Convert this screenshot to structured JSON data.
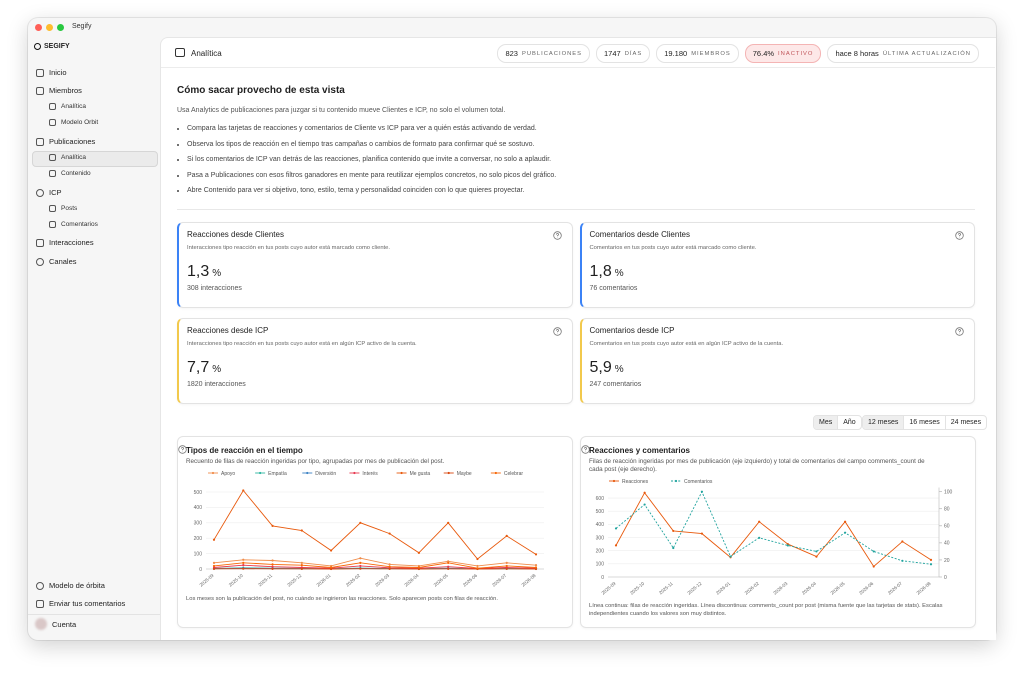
{
  "window_title": "Segify",
  "sidebar": {
    "brand": "SEGIFY",
    "nav": [
      "Inicio",
      "Miembros",
      "Analítica",
      "Modelo Orbit",
      "Publicaciones",
      "Analítica",
      "Contenido",
      "ICP",
      "Posts",
      "Comentarios",
      "Interacciones",
      "Canales"
    ],
    "footer": [
      "Modelo de órbita",
      "Enviar tus comentarios",
      "Cuenta"
    ]
  },
  "topbar": {
    "title": "Analítica",
    "stats": [
      {
        "value": "823",
        "label": "PUBLICACIONES"
      },
      {
        "value": "1747",
        "label": "DÍAS"
      },
      {
        "value": "19.180",
        "label": "MIEMBROS"
      },
      {
        "value": "76.4%",
        "label": "INACTIVO"
      },
      {
        "value": "hace 8 horas",
        "label": "ÚLTIMA ACTUALIZACIÓN"
      }
    ]
  },
  "guide": {
    "title": "Cómo sacar provecho de esta vista",
    "intro": "Usa Analytics de publicaciones para juzgar si tu contenido mueve Clientes e ICP, no solo el volumen total.",
    "bullets": [
      "Compara las tarjetas de reacciones y comentarios de Cliente vs ICP para ver a quién estás activando de verdad.",
      "Observa los tipos de reacción en el tiempo tras campañas o cambios de formato para confirmar qué se sostuvo.",
      "Si los comentarios de ICP van detrás de las reacciones, planifica contenido que invite a conversar, no solo a aplaudir.",
      "Pasa a Publicaciones con esos filtros ganadores en mente para reutilizar ejemplos concretos, no solo picos del gráfico.",
      "Abre Contenido para ver si objetivo, tono, estilo, tema y personalidad coinciden con lo que quieres proyectar."
    ]
  },
  "cards": [
    {
      "title": "Reacciones desde Clientes",
      "description": "Interacciones tipo reacción en tus posts cuyo autor está marcado como cliente.",
      "value": "1,3",
      "unit": "%",
      "detail": "308 interacciones",
      "accent": "#3b82f6"
    },
    {
      "title": "Comentarios desde Clientes",
      "description": "Comentarios en tus posts cuyo autor está marcado como cliente.",
      "value": "1,8",
      "unit": "%",
      "detail": "76 comentarios",
      "accent": "#3b82f6"
    },
    {
      "title": "Reacciones desde ICP",
      "description": "Interacciones tipo reacción en tus posts cuyo autor está en algún ICP activo de la cuenta.",
      "value": "7,7",
      "unit": "%",
      "detail": "1820 interacciones",
      "accent": "#f2c94c"
    },
    {
      "title": "Comentarios desde ICP",
      "description": "Comentarios en tus posts cuyo autor está en algún ICP activo de la cuenta.",
      "value": "5,9",
      "unit": "%",
      "detail": "247 comentarios",
      "accent": "#f2c94c"
    }
  ],
  "toggles": [
    [
      "Mes",
      "Año"
    ],
    [
      "12 meses",
      "16 meses",
      "24 meses"
    ]
  ],
  "chart_data": [
    {
      "type": "line",
      "title": "Tipos de reacción en el tiempo",
      "subtitle": "Recuento de filas de reacción ingeridas por tipo, agrupadas por mes de publicación del post.",
      "note": "Los meses son la publicación del post, no cuándo se ingirieron las reacciones. Solo aparecen posts con filas de reacción.",
      "categories": [
        "2025-09",
        "2025-10",
        "2025-11",
        "2025-12",
        "2026-01",
        "2026-02",
        "2026-03",
        "2026-04",
        "2026-05",
        "2026-06",
        "2026-07",
        "2026-08"
      ],
      "series": [
        {
          "name": "Apoyo",
          "color": "#f08c4a",
          "values": [
            40,
            60,
            55,
            40,
            20,
            70,
            30,
            20,
            50,
            20,
            40,
            25
          ]
        },
        {
          "name": "Empatía",
          "color": "#2bb5a0",
          "values": [
            3,
            8,
            5,
            4,
            2,
            6,
            3,
            2,
            5,
            1,
            3,
            2
          ]
        },
        {
          "name": "Diversión",
          "color": "#3b82c4",
          "values": [
            2,
            5,
            3,
            2,
            1,
            4,
            2,
            1,
            3,
            1,
            2,
            1
          ]
        },
        {
          "name": "Interés",
          "color": "#e8384f",
          "values": [
            10,
            25,
            15,
            10,
            5,
            20,
            8,
            5,
            15,
            3,
            10,
            5
          ]
        },
        {
          "name": "Me gusta",
          "color": "#e8590c",
          "values": [
            190,
            510,
            280,
            250,
            120,
            300,
            230,
            105,
            300,
            65,
            215,
            95
          ]
        },
        {
          "name": "Maybe",
          "color": "#d9480f",
          "values": [
            1,
            2,
            1,
            1,
            0,
            2,
            1,
            0,
            1,
            0,
            1,
            0
          ]
        },
        {
          "name": "Celebrar",
          "color": "#f76707",
          "values": [
            20,
            40,
            30,
            25,
            10,
            40,
            15,
            10,
            40,
            5,
            20,
            10
          ]
        }
      ],
      "ylim": [
        0,
        550
      ],
      "yticks": [
        0,
        100,
        200,
        300,
        400,
        500
      ],
      "grid": true,
      "markers": true
    },
    {
      "type": "line",
      "title": "Reacciones y comentarios",
      "subtitle": "Filas de reacción ingeridas por mes de publicación (eje izquierdo) y total de comentarios del campo comments_count de cada post (eje derecho).",
      "note": "Línea continua: filas de reacción ingeridas. Línea discontinua: comments_count por post (misma fuente que las tarjetas de stats). Escalas independientes cuando los valores son muy distintos.",
      "categories": [
        "2025-09",
        "2025-10",
        "2025-11",
        "2025-12",
        "2026-01",
        "2026-02",
        "2026-03",
        "2026-04",
        "2026-05",
        "2026-06",
        "2026-07",
        "2026-08"
      ],
      "series": [
        {
          "name": "Reacciones",
          "color": "#e8590c",
          "values": [
            240,
            640,
            350,
            330,
            150,
            420,
            250,
            155,
            420,
            80,
            270,
            130
          ]
        },
        {
          "name": "Comentarios",
          "color": "#20a39e",
          "values": [
            57,
            85,
            34,
            100,
            24,
            46,
            37,
            30,
            52,
            30,
            19,
            15
          ],
          "axis": "y2",
          "dashed": true
        }
      ],
      "ylim": [
        0,
        680
      ],
      "yticks": [
        0,
        100,
        200,
        300,
        400,
        500,
        600
      ],
      "y2lim": [
        0,
        105
      ],
      "y2ticks": [
        0,
        20,
        40,
        60,
        80,
        100
      ],
      "grid": true,
      "markers": true
    }
  ]
}
